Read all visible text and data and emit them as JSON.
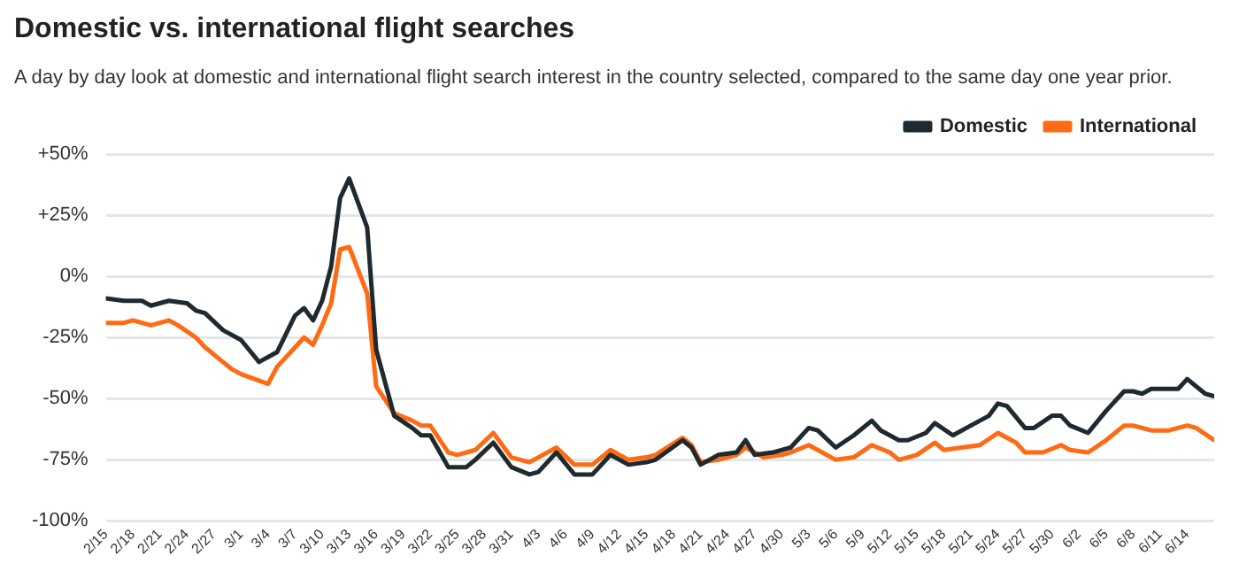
{
  "chart_data": {
    "type": "line",
    "title": "Domestic vs. international flight searches",
    "subtitle": "A day by day look at domestic and international flight search interest in the country selected, compared to the same day one year prior.",
    "series": [
      {
        "name": "Domestic",
        "color": "#1f2a30",
        "x": [
          "--02-15",
          "--02-17",
          "--02-19",
          "--02-20",
          "--02-22",
          "--02-24",
          "--02-25",
          "--02-26",
          "--02-28",
          "--03-01",
          "--03-03",
          "--03-05",
          "--03-07",
          "--03-08",
          "--03-09",
          "--03-10",
          "--03-11",
          "--03-12",
          "--03-13",
          "--03-15",
          "--03-16",
          "--03-18",
          "--03-20",
          "--03-21",
          "--03-22",
          "--03-24",
          "--03-26",
          "--03-27",
          "--03-29",
          "--03-31",
          "--04-02",
          "--04-03",
          "--04-05",
          "--04-07",
          "--04-09",
          "--04-11",
          "--04-13",
          "--04-15",
          "--04-16",
          "--04-19",
          "--04-20",
          "--04-21",
          "--04-23",
          "--04-25",
          "--04-26",
          "--04-27",
          "--04-29",
          "--05-01",
          "--05-03",
          "--05-04",
          "--05-06",
          "--05-08",
          "--05-10",
          "--05-11",
          "--05-13",
          "--05-14",
          "--05-16",
          "--05-17",
          "--05-19",
          "--05-21",
          "--05-23",
          "--05-24",
          "--05-25",
          "--05-27",
          "--05-28",
          "--05-30",
          "--05-31",
          "--06-01",
          "--06-03",
          "--06-05",
          "--06-07",
          "--06-08",
          "--06-09",
          "--06-10",
          "--06-13",
          "--06-14",
          "--06-16",
          "--06-17"
        ],
        "values": [
          -9,
          -10,
          -10,
          -12,
          -10,
          -11,
          -14,
          -15,
          -22,
          -26,
          -35,
          -31,
          -16,
          -13,
          -18,
          -10,
          4,
          32,
          40,
          20,
          -30,
          -57,
          -62,
          -65,
          -65,
          -78,
          -78,
          -75,
          -68,
          -78,
          -81,
          -80,
          -72,
          -81,
          -81,
          -73,
          -77,
          -76,
          -75,
          -67,
          -70,
          -77,
          -73,
          -72,
          -67,
          -73,
          -72,
          -70,
          -62,
          -63,
          -70,
          -65,
          -59,
          -63,
          -67,
          -67,
          -64,
          -60,
          -65,
          -61,
          -57,
          -52,
          -53,
          -62,
          -62,
          -57,
          -57,
          -61,
          -64,
          -55,
          -47,
          -47,
          -48,
          -46,
          -46,
          -42,
          -48,
          -49
        ]
      },
      {
        "name": "International",
        "color": "#ff6a13",
        "x": [
          "--02-15",
          "--02-17",
          "--02-18",
          "--02-20",
          "--02-22",
          "--02-23",
          "--02-25",
          "--02-26",
          "--02-28",
          "--02-29",
          "--03-01",
          "--03-04",
          "--03-05",
          "--03-07",
          "--03-08",
          "--03-09",
          "--03-10",
          "--03-11",
          "--03-12",
          "--03-13",
          "--03-15",
          "--03-16",
          "--03-18",
          "--03-20",
          "--03-21",
          "--03-22",
          "--03-24",
          "--03-25",
          "--03-27",
          "--03-29",
          "--03-31",
          "--04-02",
          "--04-03",
          "--04-05",
          "--04-07",
          "--04-09",
          "--04-11",
          "--04-13",
          "--04-15",
          "--04-16",
          "--04-19",
          "--04-20",
          "--04-21",
          "--04-23",
          "--04-25",
          "--04-26",
          "--04-28",
          "--04-30",
          "--05-01",
          "--05-03",
          "--05-04",
          "--05-06",
          "--05-08",
          "--05-10",
          "--05-12",
          "--05-13",
          "--05-15",
          "--05-17",
          "--05-18",
          "--05-20",
          "--05-22",
          "--05-24",
          "--05-26",
          "--05-27",
          "--05-29",
          "--05-31",
          "--06-01",
          "--06-03",
          "--06-05",
          "--06-07",
          "--06-08",
          "--06-10",
          "--06-12",
          "--06-14",
          "--06-15",
          "--06-17"
        ],
        "values": [
          -19,
          -19,
          -18,
          -20,
          -18,
          -20,
          -25,
          -29,
          -35,
          -38,
          -40,
          -44,
          -37,
          -29,
          -25,
          -28,
          -20,
          -11,
          11,
          12,
          -7,
          -45,
          -56,
          -59,
          -61,
          -61,
          -72,
          -73,
          -71,
          -64,
          -74,
          -76,
          -74,
          -70,
          -77,
          -77,
          -71,
          -75,
          -74,
          -73,
          -66,
          -69,
          -76,
          -75,
          -73,
          -70,
          -74,
          -73,
          -72,
          -69,
          -71,
          -75,
          -74,
          -69,
          -72,
          -75,
          -73,
          -68,
          -71,
          -70,
          -69,
          -64,
          -68,
          -72,
          -72,
          -69,
          -71,
          -72,
          -67,
          -61,
          -61,
          -63,
          -63,
          -61,
          -62,
          -67
        ]
      }
    ],
    "xlim": [
      "--02-15",
      "--06-17"
    ],
    "xticks": [
      {
        "value": "--02-15",
        "label": "2/15"
      },
      {
        "value": "--02-18",
        "label": "2/18"
      },
      {
        "value": "--02-21",
        "label": "2/21"
      },
      {
        "value": "--02-24",
        "label": "2/24"
      },
      {
        "value": "--02-27",
        "label": "2/27"
      },
      {
        "value": "--03-01",
        "label": "3/1"
      },
      {
        "value": "--03-04",
        "label": "3/4"
      },
      {
        "value": "--03-07",
        "label": "3/7"
      },
      {
        "value": "--03-10",
        "label": "3/10"
      },
      {
        "value": "--03-13",
        "label": "3/13"
      },
      {
        "value": "--03-16",
        "label": "3/16"
      },
      {
        "value": "--03-19",
        "label": "3/19"
      },
      {
        "value": "--03-22",
        "label": "3/22"
      },
      {
        "value": "--03-25",
        "label": "3/25"
      },
      {
        "value": "--03-28",
        "label": "3/28"
      },
      {
        "value": "--03-31",
        "label": "3/31"
      },
      {
        "value": "--04-03",
        "label": "4/3"
      },
      {
        "value": "--04-06",
        "label": "4/6"
      },
      {
        "value": "--04-09",
        "label": "4/9"
      },
      {
        "value": "--04-12",
        "label": "4/12"
      },
      {
        "value": "--04-15",
        "label": "4/15"
      },
      {
        "value": "--04-18",
        "label": "4/18"
      },
      {
        "value": "--04-21",
        "label": "4/21"
      },
      {
        "value": "--04-24",
        "label": "4/24"
      },
      {
        "value": "--04-27",
        "label": "4/27"
      },
      {
        "value": "--04-30",
        "label": "4/30"
      },
      {
        "value": "--05-03",
        "label": "5/3"
      },
      {
        "value": "--05-06",
        "label": "5/6"
      },
      {
        "value": "--05-09",
        "label": "5/9"
      },
      {
        "value": "--05-12",
        "label": "5/12"
      },
      {
        "value": "--05-15",
        "label": "5/15"
      },
      {
        "value": "--05-18",
        "label": "5/18"
      },
      {
        "value": "--05-21",
        "label": "5/21"
      },
      {
        "value": "--05-24",
        "label": "5/24"
      },
      {
        "value": "--05-27",
        "label": "5/27"
      },
      {
        "value": "--05-30",
        "label": "5/30"
      },
      {
        "value": "--06-02",
        "label": "6/2"
      },
      {
        "value": "--06-05",
        "label": "6/5"
      },
      {
        "value": "--06-08",
        "label": "6/8"
      },
      {
        "value": "--06-11",
        "label": "6/11"
      },
      {
        "value": "--06-14",
        "label": "6/14"
      }
    ],
    "ylim": [
      -100,
      50
    ],
    "yticks": [
      {
        "value": 50,
        "label": "+50%"
      },
      {
        "value": 25,
        "label": "+25%"
      },
      {
        "value": 0,
        "label": "0%"
      },
      {
        "value": -25,
        "label": "-25%"
      },
      {
        "value": -50,
        "label": "-50%"
      },
      {
        "value": -75,
        "label": "-75%"
      },
      {
        "value": -100,
        "label": "-100%"
      }
    ],
    "grid": "y",
    "legend": "top right",
    "marker": "none",
    "line_style": "solid"
  }
}
